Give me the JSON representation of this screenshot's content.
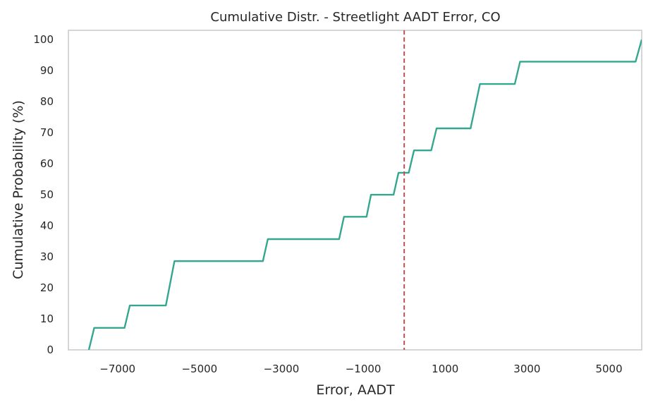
{
  "chart_data": {
    "type": "line",
    "title": "Cumulative Distr. - Streetlight AADT Error, CO",
    "xlabel": "Error, AADT",
    "ylabel": "Cumulative Probability (%)",
    "xlim": [
      -8200,
      5800
    ],
    "ylim": [
      0,
      103
    ],
    "xticks": [
      -7000,
      -5000,
      -3000,
      -1000,
      1000,
      3000,
      5000
    ],
    "xtick_labels": [
      "−7000",
      "−5000",
      "−3000",
      "−1000",
      "1000",
      "3000",
      "5000"
    ],
    "yticks": [
      0,
      10,
      20,
      30,
      40,
      50,
      60,
      70,
      80,
      90,
      100
    ],
    "ytick_labels": [
      "0",
      "10",
      "20",
      "30",
      "40",
      "50",
      "60",
      "70",
      "80",
      "90",
      "100"
    ],
    "grid": false,
    "series": [
      {
        "color": "#35a68f",
        "x": [
          -7700,
          -7570,
          -6830,
          -6700,
          -5820,
          -5610,
          -3450,
          -3330,
          -1590,
          -1470,
          -920,
          -810,
          -260,
          -140,
          110,
          240,
          660,
          790,
          1620,
          1850,
          2700,
          2830,
          5650,
          5800
        ],
        "y": [
          0,
          7.1,
          7.1,
          14.3,
          14.3,
          28.6,
          28.6,
          35.7,
          35.7,
          42.9,
          42.9,
          50,
          50,
          57.1,
          57.1,
          64.3,
          64.3,
          71.4,
          71.4,
          85.7,
          85.7,
          92.9,
          92.9,
          100
        ]
      }
    ],
    "reference_line": {
      "orientation": "vertical",
      "x": 0,
      "style": "dashed",
      "color": "#c0504d"
    },
    "frame_color": "#cccccc"
  }
}
